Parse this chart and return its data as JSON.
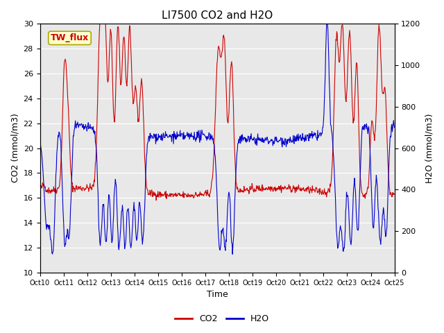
{
  "title": "LI7500 CO2 and H2O",
  "xlabel": "Time",
  "ylabel_left": "CO2 (mmol/m3)",
  "ylabel_right": "H2O (mmol/m3)",
  "label_box": "TW_flux",
  "co2_color": "#cc0000",
  "h2o_color": "#0000cc",
  "ylim_left": [
    10,
    30
  ],
  "ylim_right": [
    0,
    1200
  ],
  "yticks_left": [
    10,
    12,
    14,
    16,
    18,
    20,
    22,
    24,
    26,
    28,
    30
  ],
  "yticks_right": [
    0,
    200,
    400,
    600,
    800,
    1000,
    1200
  ],
  "xtick_labels": [
    "Oct 10",
    "Oct 11",
    "Oct 12",
    "Oct 13",
    "Oct 14",
    "Oct 15",
    "Oct 16",
    "Oct 17",
    "Oct 18",
    "Oct 19",
    "Oct 20",
    "Oct 21",
    "Oct 22",
    "Oct 23",
    "Oct 24",
    "Oct 25"
  ],
  "bg_color": "#e8e8e8",
  "fig_color": "#ffffff",
  "grid_color": "#ffffff",
  "legend_co2": "CO2",
  "legend_h2o": "H2O",
  "xmin": 0,
  "xmax": 15
}
